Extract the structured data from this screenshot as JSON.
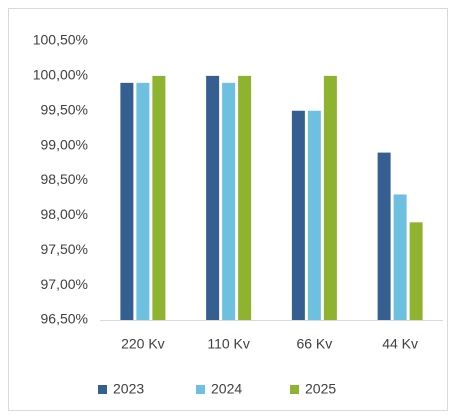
{
  "chart_data": {
    "type": "bar",
    "categories": [
      "220 Kv",
      "110 Kv",
      "66 Kv",
      "44 Kv"
    ],
    "series": [
      {
        "name": "2023",
        "color": "#365f91",
        "values": [
          99.9,
          100.0,
          99.5,
          98.9
        ]
      },
      {
        "name": "2024",
        "color": "#6ec0e0",
        "values": [
          99.9,
          99.9,
          99.5,
          98.3
        ]
      },
      {
        "name": "2025",
        "color": "#8db32f",
        "values": [
          100.0,
          100.0,
          100.0,
          97.9
        ]
      }
    ],
    "ylim": [
      96.5,
      100.5
    ],
    "yticks": [
      {
        "value": 96.5,
        "label": "96,50%"
      },
      {
        "value": 97.0,
        "label": "97,00%"
      },
      {
        "value": 97.5,
        "label": "97,50%"
      },
      {
        "value": 98.0,
        "label": "98,00%"
      },
      {
        "value": 98.5,
        "label": "98,50%"
      },
      {
        "value": 99.0,
        "label": "99,00%"
      },
      {
        "value": 99.5,
        "label": "99,50%"
      },
      {
        "value": 100.0,
        "label": "100,00%"
      },
      {
        "value": 100.5,
        "label": "100,50%"
      }
    ],
    "grid": false,
    "legend": "bottom"
  }
}
